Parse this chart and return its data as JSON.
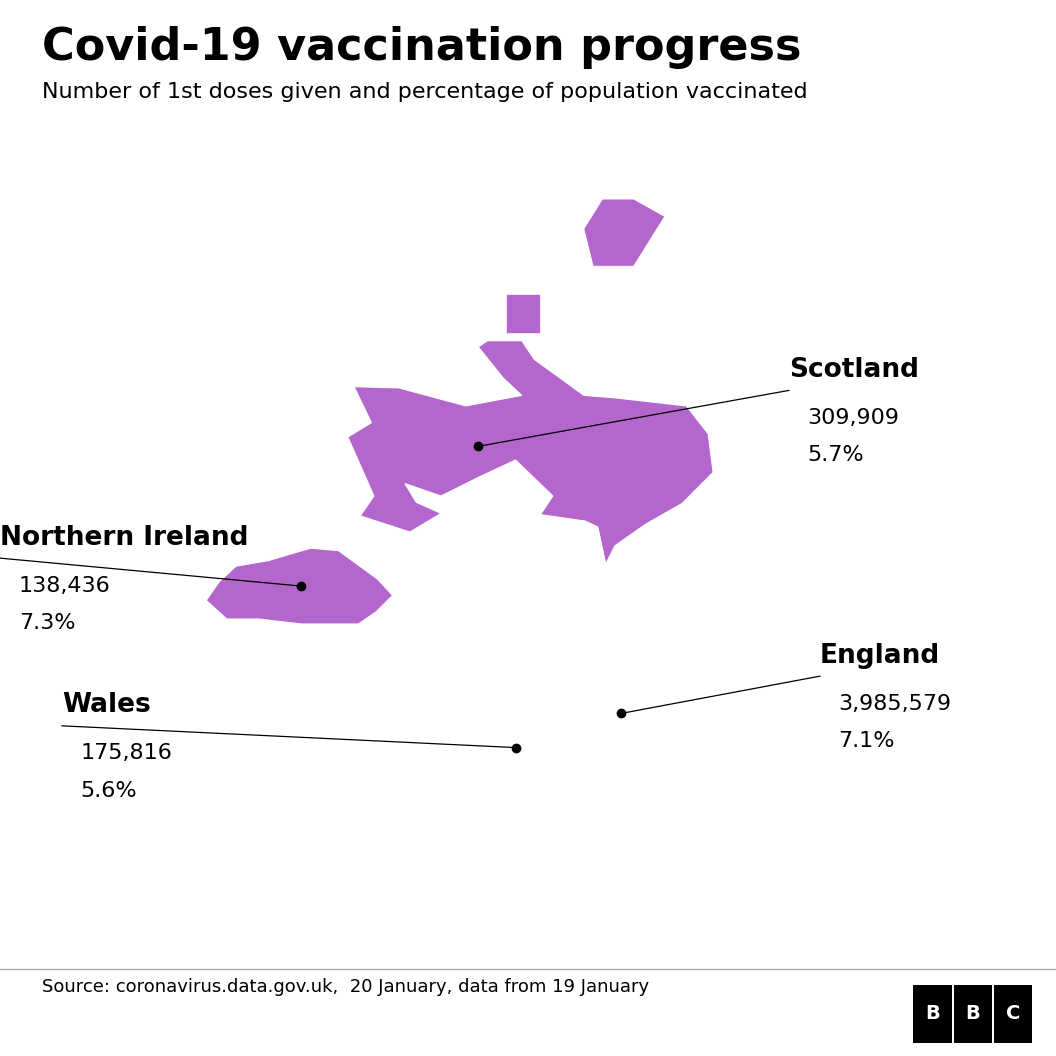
{
  "title": "Covid-19 vaccination progress",
  "subtitle": "Number of 1st doses given and percentage of population vaccinated",
  "source": "Source: coronavirus.data.gov.uk,  20 January, data from 19 January",
  "background_color": "#ffffff",
  "map_color": "#b366cc",
  "border_color": "#ffffff",
  "regions": [
    {
      "name": "Scotland",
      "count": "309,909",
      "percent": "5.7%",
      "dot_lon": -3.8,
      "dot_lat": 56.9,
      "label_lon": 1.2,
      "label_lat": 57.8,
      "name_ha": "left"
    },
    {
      "name": "Northern Ireland",
      "count": "138,436",
      "percent": "7.3%",
      "dot_lon": -6.65,
      "dot_lat": 54.65,
      "label_lon": -11.5,
      "label_lat": 55.1,
      "name_ha": "left"
    },
    {
      "name": "Wales",
      "count": "175,816",
      "percent": "5.6%",
      "dot_lon": -3.2,
      "dot_lat": 52.05,
      "label_lon": -10.5,
      "label_lat": 52.4,
      "name_ha": "left"
    },
    {
      "name": "England",
      "count": "3,985,579",
      "percent": "7.1%",
      "dot_lon": -1.5,
      "dot_lat": 52.6,
      "label_lon": 1.7,
      "label_lat": 53.2,
      "name_ha": "left"
    }
  ],
  "xlim": [
    -11.5,
    5.5
  ],
  "ylim": [
    49.5,
    61.5
  ],
  "title_fontsize": 32,
  "subtitle_fontsize": 16,
  "label_fontsize": 19,
  "data_fontsize": 16,
  "source_fontsize": 13
}
